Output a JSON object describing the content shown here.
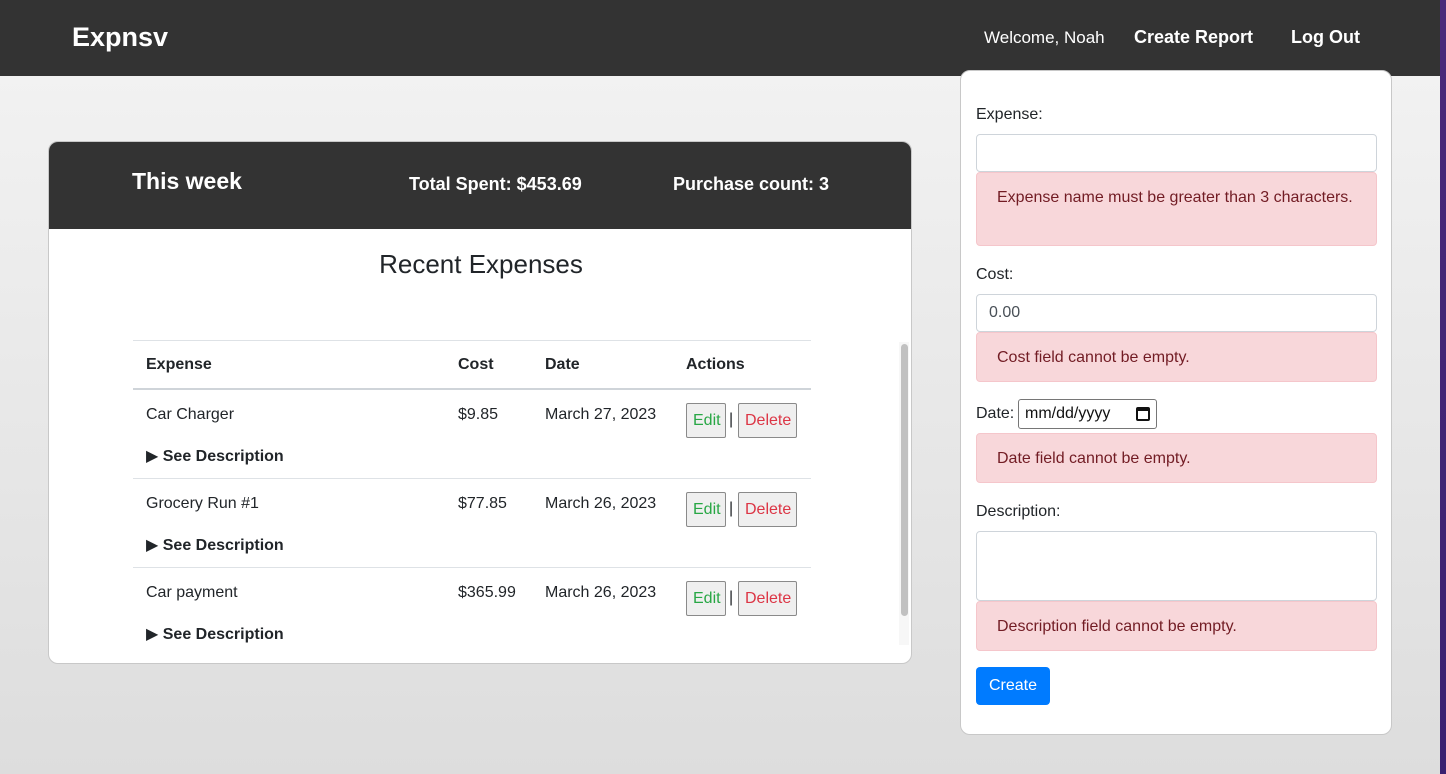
{
  "navbar": {
    "brand": "Expnsv",
    "welcome": "Welcome, Noah",
    "create_report": "Create Report",
    "logout": "Log Out"
  },
  "summary": {
    "period": "This week",
    "total": "Total Spent: $453.69",
    "count": "Purchase count: 3"
  },
  "expenses": {
    "title": "Recent Expenses",
    "headers": {
      "expense": "Expense",
      "cost": "Cost",
      "date": "Date",
      "actions": "Actions"
    },
    "edit_label": "Edit",
    "delete_label": "Delete",
    "separator": "|",
    "description_toggle": "▶ See Description",
    "rows": [
      {
        "name": "Car Charger",
        "cost": "$9.85",
        "date": "March 27, 2023"
      },
      {
        "name": "Grocery Run #1",
        "cost": "$77.85",
        "date": "March 26, 2023"
      },
      {
        "name": "Car payment",
        "cost": "$365.99",
        "date": "March 26, 2023"
      }
    ]
  },
  "form": {
    "expense_label": "Expense:",
    "expense_value": "",
    "expense_error": "Expense name must be greater than 3 characters.",
    "cost_label": "Cost:",
    "cost_value": "0.00",
    "cost_error": "Cost field cannot be empty.",
    "date_label": "Date:",
    "date_placeholder": "mm/dd/yyyy",
    "date_error": "Date field cannot be empty.",
    "description_label": "Description:",
    "description_error": "Description field cannot be empty.",
    "create_label": "Create"
  },
  "colors": {
    "header_bg": "#333333",
    "edit": "#28a745",
    "delete": "#dc3545",
    "primary": "#007bff",
    "alert_bg": "#f8d7da"
  }
}
